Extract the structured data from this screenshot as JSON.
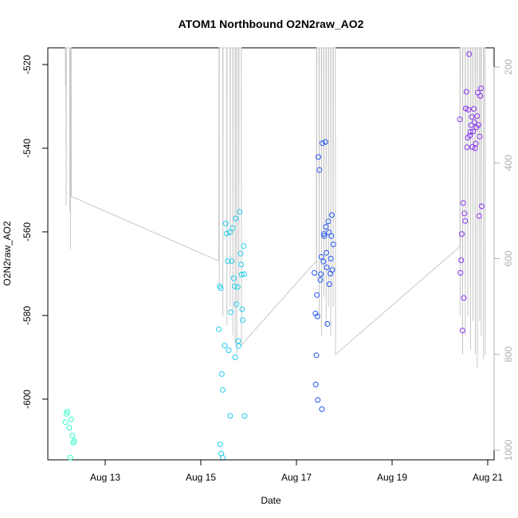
{
  "chart_data": {
    "type": "scatter",
    "title": "ATOM1 Northbound O2N2raw_AO2",
    "xlabel": "Date",
    "ylabel": "O2N2raw_AO2",
    "xlim": [
      "2024-08-12",
      "2024-08-21"
    ],
    "ylim": [
      -614.5,
      -516
    ],
    "y2lim": [
      160,
      1020
    ],
    "x_ticks": [
      {
        "date": "2024-08-13",
        "label": "Aug 13"
      },
      {
        "date": "2024-08-15",
        "label": "Aug 15"
      },
      {
        "date": "2024-08-17",
        "label": "Aug 17"
      },
      {
        "date": "2024-08-19",
        "label": "Aug 19"
      },
      {
        "date": "2024-08-21",
        "label": "Aug 21"
      }
    ],
    "y_ticks": [
      -600,
      -580,
      -560,
      -540,
      -520
    ],
    "y2_ticks": [
      200,
      400,
      600,
      800,
      1000
    ],
    "grid": false,
    "background_series": {
      "color": "#c8c8c8",
      "points": [
        [
          "2024-08-12 04:00",
          160
        ],
        [
          "2024-08-12 04:05",
          240
        ],
        [
          "2024-08-12 04:10",
          160
        ],
        [
          "2024-08-12 04:20",
          160
        ],
        [
          "2024-08-12 04:25",
          490
        ],
        [
          "2024-08-12 04:30",
          160
        ],
        [
          "2024-08-12 06:10",
          160
        ],
        [
          "2024-08-12 06:15",
          500
        ],
        [
          "2024-08-12 06:20",
          160
        ],
        [
          "2024-08-12 06:30",
          160
        ],
        [
          "2024-08-12 06:35",
          580
        ],
        [
          "2024-08-12 06:40",
          160
        ],
        [
          "2024-08-12 06:55",
          160
        ],
        [
          "2024-08-12 07:00",
          470
        ],
        [
          "2024-08-15 09:00",
          605
        ],
        [
          "2024-08-15 09:10",
          160
        ],
        [
          "2024-08-15 09:15",
          660
        ],
        [
          "2024-08-15 09:20",
          160
        ],
        [
          "2024-08-15 11:00",
          160
        ],
        [
          "2024-08-15 11:05",
          720
        ],
        [
          "2024-08-15 11:10",
          160
        ],
        [
          "2024-08-15 13:00",
          160
        ],
        [
          "2024-08-15 13:05",
          740
        ],
        [
          "2024-08-15 13:10",
          160
        ],
        [
          "2024-08-15 14:40",
          160
        ],
        [
          "2024-08-15 14:45",
          700
        ],
        [
          "2024-08-15 14:50",
          160
        ],
        [
          "2024-08-15 16:00",
          160
        ],
        [
          "2024-08-15 16:05",
          760
        ],
        [
          "2024-08-15 16:10",
          160
        ],
        [
          "2024-08-15 17:10",
          160
        ],
        [
          "2024-08-15 17:15",
          780
        ],
        [
          "2024-08-15 17:20",
          160
        ],
        [
          "2024-08-15 18:00",
          160
        ],
        [
          "2024-08-15 18:05",
          800
        ],
        [
          "2024-08-15 18:10",
          160
        ],
        [
          "2024-08-15 19:00",
          160
        ],
        [
          "2024-08-15 19:05",
          690
        ],
        [
          "2024-08-15 19:10",
          160
        ],
        [
          "2024-08-15 20:20",
          160
        ],
        [
          "2024-08-15 20:25",
          780
        ],
        [
          "2024-08-17 10:00",
          605
        ],
        [
          "2024-08-17 10:05",
          160
        ],
        [
          "2024-08-17 10:10",
          640
        ],
        [
          "2024-08-17 10:15",
          160
        ],
        [
          "2024-08-17 11:20",
          160
        ],
        [
          "2024-08-17 11:25",
          720
        ],
        [
          "2024-08-17 11:30",
          160
        ],
        [
          "2024-08-17 12:30",
          160
        ],
        [
          "2024-08-17 12:35",
          760
        ],
        [
          "2024-08-17 12:40",
          160
        ],
        [
          "2024-08-17 13:40",
          160
        ],
        [
          "2024-08-17 13:45",
          680
        ],
        [
          "2024-08-17 13:50",
          160
        ],
        [
          "2024-08-17 14:50",
          160
        ],
        [
          "2024-08-17 14:55",
          740
        ],
        [
          "2024-08-17 15:00",
          160
        ],
        [
          "2024-08-17 16:00",
          160
        ],
        [
          "2024-08-17 16:05",
          700
        ],
        [
          "2024-08-17 16:10",
          160
        ],
        [
          "2024-08-17 17:10",
          160
        ],
        [
          "2024-08-17 17:15",
          760
        ],
        [
          "2024-08-17 17:20",
          160
        ],
        [
          "2024-08-17 18:20",
          160
        ],
        [
          "2024-08-17 18:25",
          700
        ],
        [
          "2024-08-17 18:30",
          160
        ],
        [
          "2024-08-17 19:30",
          160
        ],
        [
          "2024-08-17 19:35",
          800
        ],
        [
          "2024-08-20 10:00",
          575
        ],
        [
          "2024-08-20 10:05",
          160
        ],
        [
          "2024-08-20 10:10",
          720
        ],
        [
          "2024-08-20 10:15",
          160
        ],
        [
          "2024-08-20 11:20",
          160
        ],
        [
          "2024-08-20 11:25",
          800
        ],
        [
          "2024-08-20 11:30",
          160
        ],
        [
          "2024-08-20 12:40",
          160
        ],
        [
          "2024-08-20 12:45",
          760
        ],
        [
          "2024-08-20 12:50",
          160
        ],
        [
          "2024-08-20 14:00",
          160
        ],
        [
          "2024-08-20 14:05",
          720
        ],
        [
          "2024-08-20 14:10",
          160
        ],
        [
          "2024-08-20 15:20",
          160
        ],
        [
          "2024-08-20 15:25",
          790
        ],
        [
          "2024-08-20 15:30",
          160
        ],
        [
          "2024-08-20 16:30",
          160
        ],
        [
          "2024-08-20 16:35",
          730
        ],
        [
          "2024-08-20 16:40",
          160
        ],
        [
          "2024-08-20 17:40",
          160
        ],
        [
          "2024-08-20 17:45",
          800
        ],
        [
          "2024-08-20 17:50",
          160
        ],
        [
          "2024-08-20 18:40",
          160
        ],
        [
          "2024-08-20 18:45",
          830
        ],
        [
          "2024-08-20 18:50",
          160
        ],
        [
          "2024-08-20 19:50",
          160
        ],
        [
          "2024-08-20 19:55",
          730
        ],
        [
          "2024-08-20 20:00",
          160
        ],
        [
          "2024-08-20 20:40",
          160
        ],
        [
          "2024-08-20 20:45",
          760
        ],
        [
          "2024-08-20 20:50",
          160
        ],
        [
          "2024-08-20 21:50",
          160
        ],
        [
          "2024-08-20 21:55",
          810
        ],
        [
          "2024-08-20 22:00",
          160
        ],
        [
          "2024-08-20 22:40",
          160
        ],
        [
          "2024-08-20 22:45",
          800
        ]
      ]
    },
    "series": [
      {
        "color": "#33ffcc",
        "points": [
          [
            "2024-08-12 04:00",
            -605.5
          ],
          [
            "2024-08-12 04:30",
            -603.5
          ],
          [
            "2024-08-12 05:00",
            -603.0
          ],
          [
            "2024-08-12 06:00",
            -606.8
          ],
          [
            "2024-08-12 07:00",
            -604.8
          ],
          [
            "2024-08-12 07:30",
            -608.7
          ],
          [
            "2024-08-12 08:00",
            -610.4
          ],
          [
            "2024-08-12 08:30",
            -610.0
          ],
          [
            "2024-08-12 06:30",
            -614.0
          ]
        ]
      },
      {
        "color": "#22ccee",
        "points": [
          [
            "2024-08-15 09:00",
            -583.3
          ],
          [
            "2024-08-15 09:30",
            -573.0
          ],
          [
            "2024-08-15 10:00",
            -573.5
          ],
          [
            "2024-08-15 10:30",
            -594.0
          ],
          [
            "2024-08-15 11:00",
            -597.8
          ],
          [
            "2024-08-15 09:45",
            -610.8
          ],
          [
            "2024-08-15 10:15",
            -613.0
          ],
          [
            "2024-08-15 11:00",
            -614.0
          ],
          [
            "2024-08-15 12:00",
            -587.2
          ],
          [
            "2024-08-15 12:30",
            -558.0
          ],
          [
            "2024-08-15 13:00",
            -560.4
          ],
          [
            "2024-08-15 13:30",
            -567.0
          ],
          [
            "2024-08-15 14:00",
            -588.3
          ],
          [
            "2024-08-15 14:30",
            -560.1
          ],
          [
            "2024-08-15 14:45",
            -604.0
          ],
          [
            "2024-08-15 15:00",
            -579.2
          ],
          [
            "2024-08-15 15:30",
            -567.0
          ],
          [
            "2024-08-15 16:00",
            -559.1
          ],
          [
            "2024-08-15 16:30",
            -571.1
          ],
          [
            "2024-08-15 17:00",
            -573.0
          ],
          [
            "2024-08-15 17:15",
            -590.0
          ],
          [
            "2024-08-15 17:30",
            -556.8
          ],
          [
            "2024-08-15 18:00",
            -577.3
          ],
          [
            "2024-08-15 18:30",
            -573.2
          ],
          [
            "2024-08-15 18:45",
            -586.1
          ],
          [
            "2024-08-15 19:00",
            -587.3
          ],
          [
            "2024-08-15 19:30",
            -555.2
          ],
          [
            "2024-08-15 20:00",
            -565.2
          ],
          [
            "2024-08-15 20:15",
            -567.8
          ],
          [
            "2024-08-15 20:30",
            -570.2
          ],
          [
            "2024-08-15 20:45",
            -578.5
          ],
          [
            "2024-08-15 21:00",
            -581.1
          ],
          [
            "2024-08-15 21:30",
            -563.4
          ],
          [
            "2024-08-15 21:45",
            -570.1
          ],
          [
            "2024-08-15 22:00",
            -604.0
          ]
        ]
      },
      {
        "color": "#2255ee",
        "points": [
          [
            "2024-08-17 09:00",
            -569.8
          ],
          [
            "2024-08-17 09:30",
            -579.5
          ],
          [
            "2024-08-17 09:40",
            -596.5
          ],
          [
            "2024-08-17 10:00",
            -589.5
          ],
          [
            "2024-08-17 10:15",
            -575.1
          ],
          [
            "2024-08-17 10:30",
            -580.2
          ],
          [
            "2024-08-17 10:40",
            -600.2
          ],
          [
            "2024-08-17 11:00",
            -542.1
          ],
          [
            "2024-08-17 11:30",
            -545.2
          ],
          [
            "2024-08-17 12:00",
            -571.5
          ],
          [
            "2024-08-17 12:15",
            -570.1
          ],
          [
            "2024-08-17 12:30",
            -566.0
          ],
          [
            "2024-08-17 12:45",
            -602.4
          ],
          [
            "2024-08-17 13:00",
            -538.8
          ],
          [
            "2024-08-17 13:30",
            -567.1
          ],
          [
            "2024-08-17 13:45",
            -560.5
          ],
          [
            "2024-08-17 14:00",
            -561.0
          ],
          [
            "2024-08-17 14:30",
            -538.5
          ],
          [
            "2024-08-17 14:45",
            -558.8
          ],
          [
            "2024-08-17 15:00",
            -565.0
          ],
          [
            "2024-08-17 15:15",
            -568.5
          ],
          [
            "2024-08-17 15:30",
            -582.0
          ],
          [
            "2024-08-17 16:00",
            -557.5
          ],
          [
            "2024-08-17 16:15",
            -560.1
          ],
          [
            "2024-08-17 16:30",
            -572.5
          ],
          [
            "2024-08-17 17:00",
            -570.0
          ],
          [
            "2024-08-17 17:15",
            -566.4
          ],
          [
            "2024-08-17 17:30",
            -561.0
          ],
          [
            "2024-08-17 17:45",
            -556.0
          ],
          [
            "2024-08-17 18:00",
            -569.1
          ],
          [
            "2024-08-17 18:30",
            -563.0
          ]
        ]
      },
      {
        "color": "#8833ee",
        "points": [
          [
            "2024-08-20 10:00",
            -533.1
          ],
          [
            "2024-08-20 10:20",
            -569.8
          ],
          [
            "2024-08-20 10:40",
            -566.8
          ],
          [
            "2024-08-20 11:00",
            -560.5
          ],
          [
            "2024-08-20 11:20",
            -583.6
          ],
          [
            "2024-08-20 11:40",
            -553.1
          ],
          [
            "2024-08-20 12:00",
            -575.8
          ],
          [
            "2024-08-20 12:20",
            -555.6
          ],
          [
            "2024-08-20 12:40",
            -557.4
          ],
          [
            "2024-08-20 13:00",
            -530.5
          ],
          [
            "2024-08-20 13:20",
            -526.5
          ],
          [
            "2024-08-20 13:40",
            -539.8
          ],
          [
            "2024-08-20 14:00",
            -537.5
          ],
          [
            "2024-08-20 14:20",
            -530.8
          ],
          [
            "2024-08-20 14:40",
            -517.5
          ],
          [
            "2024-08-20 15:00",
            -537.0
          ],
          [
            "2024-08-20 15:20",
            -536.1
          ],
          [
            "2024-08-20 15:40",
            -534.5
          ],
          [
            "2024-08-20 16:00",
            -532.5
          ],
          [
            "2024-08-20 16:20",
            -539.7
          ],
          [
            "2024-08-20 16:40",
            -536.0
          ],
          [
            "2024-08-20 17:00",
            -530.6
          ],
          [
            "2024-08-20 17:20",
            -533.8
          ],
          [
            "2024-08-20 17:40",
            -540.0
          ],
          [
            "2024-08-20 18:00",
            -538.9
          ],
          [
            "2024-08-20 18:20",
            -535.0
          ],
          [
            "2024-08-20 18:40",
            -532.3
          ],
          [
            "2024-08-20 19:00",
            -526.7
          ],
          [
            "2024-08-20 19:20",
            -534.4
          ],
          [
            "2024-08-20 19:40",
            -556.2
          ],
          [
            "2024-08-20 20:00",
            -537.2
          ],
          [
            "2024-08-20 20:20",
            -527.5
          ],
          [
            "2024-08-20 20:40",
            -525.7
          ],
          [
            "2024-08-20 21:00",
            -553.9
          ]
        ]
      }
    ]
  }
}
